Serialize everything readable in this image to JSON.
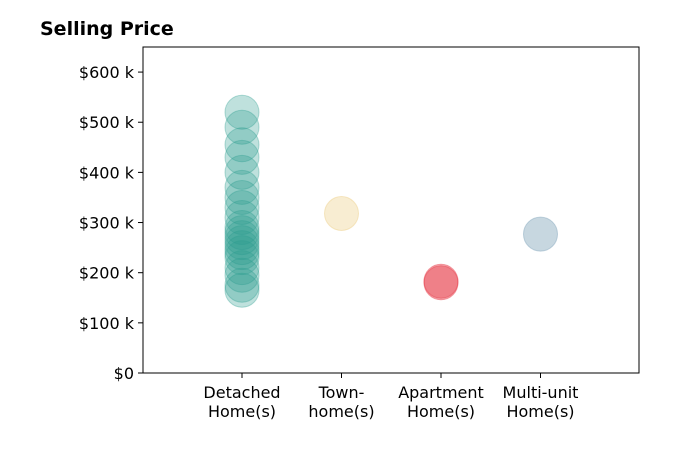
{
  "chart_data": {
    "type": "scatter",
    "title": "Selling Price",
    "xlabel": "",
    "ylabel": "",
    "categories": [
      [
        "Detached",
        "Home(s)"
      ],
      [
        "Town-",
        "home(s)"
      ],
      [
        "Apartment",
        "Home(s)"
      ],
      [
        "Multi-unit",
        "Home(s)"
      ]
    ],
    "ylim": [
      0,
      650000
    ],
    "yticks": [
      {
        "value": 0,
        "label": "$0"
      },
      {
        "value": 100000,
        "label": "$100 k"
      },
      {
        "value": 200000,
        "label": "$200 k"
      },
      {
        "value": 300000,
        "label": "$300 k"
      },
      {
        "value": 400000,
        "label": "$400 k"
      },
      {
        "value": 500000,
        "label": "$500 k"
      },
      {
        "value": 600000,
        "label": "$600 k"
      }
    ],
    "grid": false,
    "legend": "none",
    "series": [
      {
        "category": 0,
        "color": "#2a9d8f",
        "opacity": 0.3,
        "values": [
          520000,
          490000,
          455000,
          430000,
          400000,
          370000,
          350000,
          330000,
          310000,
          290000,
          280000,
          270000,
          260000,
          250000,
          240000,
          230000,
          210000,
          195000,
          175000,
          165000
        ]
      },
      {
        "category": 1,
        "color": "#e9c46a",
        "opacity": 0.3,
        "values": [
          318000
        ]
      },
      {
        "category": 2,
        "color": "#e63946",
        "opacity": 0.4,
        "values": [
          183000,
          180000
        ]
      },
      {
        "category": 3,
        "color": "#8fafc2",
        "opacity": 0.5,
        "values": [
          277000
        ]
      }
    ]
  }
}
